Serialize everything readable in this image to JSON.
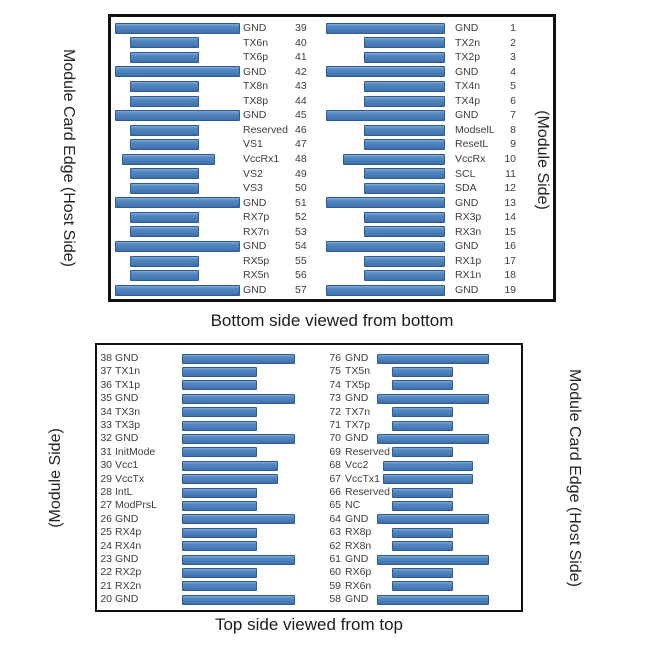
{
  "colors": {
    "pad_fill": "#4a7fbc",
    "pad_border": "#2f5c90",
    "panel_border": "#101010",
    "text": "#3d3d3d"
  },
  "top_panel": {
    "caption": "Bottom side viewed from bottom",
    "left_edge_label": "Module Card Edge (Host Side)",
    "right_edge_label": "(Module Side)",
    "left_column_pins": [
      {
        "pin": "39",
        "name": "GND",
        "pad": "long"
      },
      {
        "pin": "40",
        "name": "TX6n",
        "pad": "short"
      },
      {
        "pin": "41",
        "name": "TX6p",
        "pad": "short"
      },
      {
        "pin": "42",
        "name": "GND",
        "pad": "long"
      },
      {
        "pin": "43",
        "name": "TX8n",
        "pad": "short"
      },
      {
        "pin": "44",
        "name": "TX8p",
        "pad": "short"
      },
      {
        "pin": "45",
        "name": "GND",
        "pad": "long"
      },
      {
        "pin": "46",
        "name": "Reserved",
        "pad": "short"
      },
      {
        "pin": "47",
        "name": "VS1",
        "pad": "short"
      },
      {
        "pin": "48",
        "name": "VccRx1",
        "pad": "medium"
      },
      {
        "pin": "49",
        "name": "VS2",
        "pad": "short"
      },
      {
        "pin": "50",
        "name": "VS3",
        "pad": "short"
      },
      {
        "pin": "51",
        "name": "GND",
        "pad": "long"
      },
      {
        "pin": "52",
        "name": "RX7p",
        "pad": "short"
      },
      {
        "pin": "53",
        "name": "RX7n",
        "pad": "short"
      },
      {
        "pin": "54",
        "name": "GND",
        "pad": "long"
      },
      {
        "pin": "55",
        "name": "RX5p",
        "pad": "short"
      },
      {
        "pin": "56",
        "name": "RX5n",
        "pad": "short"
      },
      {
        "pin": "57",
        "name": "GND",
        "pad": "long"
      }
    ],
    "right_column_pins": [
      {
        "pin": "1",
        "name": "GND",
        "pad": "long"
      },
      {
        "pin": "2",
        "name": "TX2n",
        "pad": "short"
      },
      {
        "pin": "3",
        "name": "TX2p",
        "pad": "short"
      },
      {
        "pin": "4",
        "name": "GND",
        "pad": "long"
      },
      {
        "pin": "5",
        "name": "TX4n",
        "pad": "short"
      },
      {
        "pin": "6",
        "name": "TX4p",
        "pad": "short"
      },
      {
        "pin": "7",
        "name": "GND",
        "pad": "long"
      },
      {
        "pin": "8",
        "name": "ModselL",
        "pad": "short"
      },
      {
        "pin": "9",
        "name": "ResetL",
        "pad": "short"
      },
      {
        "pin": "10",
        "name": "VccRx",
        "pad": "medium"
      },
      {
        "pin": "11",
        "name": "SCL",
        "pad": "short"
      },
      {
        "pin": "12",
        "name": "SDA",
        "pad": "short"
      },
      {
        "pin": "13",
        "name": "GND",
        "pad": "long"
      },
      {
        "pin": "14",
        "name": "RX3p",
        "pad": "short"
      },
      {
        "pin": "15",
        "name": "RX3n",
        "pad": "short"
      },
      {
        "pin": "16",
        "name": "GND",
        "pad": "long"
      },
      {
        "pin": "17",
        "name": "RX1p",
        "pad": "short"
      },
      {
        "pin": "18",
        "name": "RX1n",
        "pad": "short"
      },
      {
        "pin": "19",
        "name": "GND",
        "pad": "long"
      }
    ]
  },
  "bottom_panel": {
    "caption": "Top side viewed from top",
    "left_edge_label": "(Module Side)",
    "right_edge_label": "Module Card Edge (Host Side)",
    "left_column_pins": [
      {
        "pin": "38",
        "name": "GND",
        "pad": "long"
      },
      {
        "pin": "37",
        "name": "TX1n",
        "pad": "short"
      },
      {
        "pin": "36",
        "name": "TX1p",
        "pad": "short"
      },
      {
        "pin": "35",
        "name": "GND",
        "pad": "long"
      },
      {
        "pin": "34",
        "name": "TX3n",
        "pad": "short"
      },
      {
        "pin": "33",
        "name": "TX3p",
        "pad": "short"
      },
      {
        "pin": "32",
        "name": "GND",
        "pad": "long"
      },
      {
        "pin": "31",
        "name": "InitMode",
        "pad": "short"
      },
      {
        "pin": "30",
        "name": "Vcc1",
        "pad": "medium"
      },
      {
        "pin": "29",
        "name": "VccTx",
        "pad": "medium"
      },
      {
        "pin": "28",
        "name": "IntL",
        "pad": "short"
      },
      {
        "pin": "27",
        "name": "ModPrsL",
        "pad": "short"
      },
      {
        "pin": "26",
        "name": "GND",
        "pad": "long"
      },
      {
        "pin": "25",
        "name": "RX4p",
        "pad": "short"
      },
      {
        "pin": "24",
        "name": "RX4n",
        "pad": "short"
      },
      {
        "pin": "23",
        "name": "GND",
        "pad": "long"
      },
      {
        "pin": "22",
        "name": "RX2p",
        "pad": "short"
      },
      {
        "pin": "21",
        "name": "RX2n",
        "pad": "short"
      },
      {
        "pin": "20",
        "name": "GND",
        "pad": "long"
      }
    ],
    "right_column_pins": [
      {
        "pin": "76",
        "name": "GND",
        "pad": "long"
      },
      {
        "pin": "75",
        "name": "TX5n",
        "pad": "short"
      },
      {
        "pin": "74",
        "name": "TX5p",
        "pad": "short"
      },
      {
        "pin": "73",
        "name": "GND",
        "pad": "long"
      },
      {
        "pin": "72",
        "name": "TX7n",
        "pad": "short"
      },
      {
        "pin": "71",
        "name": "TX7p",
        "pad": "short"
      },
      {
        "pin": "70",
        "name": "GND",
        "pad": "long"
      },
      {
        "pin": "69",
        "name": "Reserved",
        "pad": "short"
      },
      {
        "pin": "68",
        "name": "Vcc2",
        "pad": "medium"
      },
      {
        "pin": "67",
        "name": "VccTx1",
        "pad": "medium"
      },
      {
        "pin": "66",
        "name": "Reserved",
        "pad": "short"
      },
      {
        "pin": "65",
        "name": "NC",
        "pad": "short"
      },
      {
        "pin": "64",
        "name": "GND",
        "pad": "long"
      },
      {
        "pin": "63",
        "name": "RX8p",
        "pad": "short"
      },
      {
        "pin": "62",
        "name": "RX8n",
        "pad": "short"
      },
      {
        "pin": "61",
        "name": "GND",
        "pad": "long"
      },
      {
        "pin": "60",
        "name": "RX6p",
        "pad": "short"
      },
      {
        "pin": "59",
        "name": "RX6n",
        "pad": "short"
      },
      {
        "pin": "58",
        "name": "GND",
        "pad": "long"
      }
    ]
  }
}
